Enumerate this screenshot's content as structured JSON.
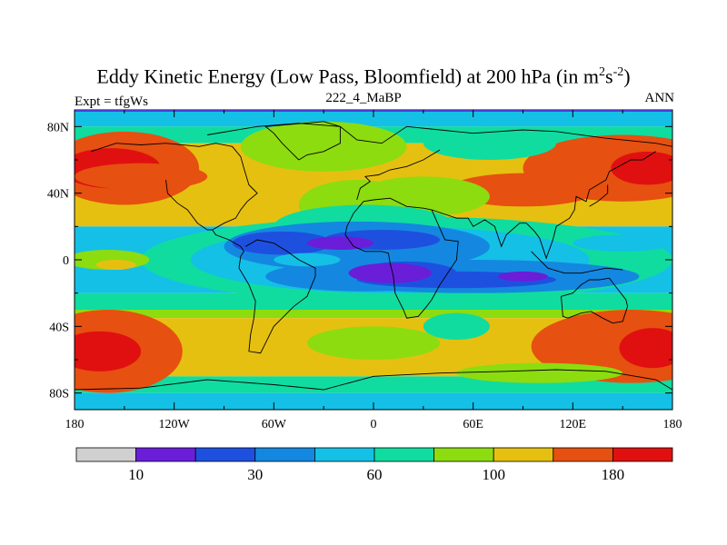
{
  "chart_data": {
    "type": "heatmap",
    "title": "Eddy Kinetic Energy (Low Pass, Bloomfield) at 200 hPa (in m",
    "title_sup1": "2",
    "title_mid": "s",
    "title_sup2": "-2",
    "title_end": ")",
    "subtitle": "222_4_MaBP",
    "left_label": "Expt = tfgWs",
    "right_label": "ANN",
    "x_ticks": [
      {
        "value": -180,
        "label": "180"
      },
      {
        "value": -120,
        "label": "120W"
      },
      {
        "value": -60,
        "label": "60W"
      },
      {
        "value": 0,
        "label": "0"
      },
      {
        "value": 60,
        "label": "60E"
      },
      {
        "value": 120,
        "label": "120E"
      },
      {
        "value": 180,
        "label": "180"
      }
    ],
    "y_ticks": [
      {
        "value": 80,
        "label": "80N"
      },
      {
        "value": 40,
        "label": "40N"
      },
      {
        "value": 0,
        "label": "0"
      },
      {
        "value": -40,
        "label": "40S"
      },
      {
        "value": -80,
        "label": "80S"
      }
    ],
    "xlim": [
      -180,
      180
    ],
    "ylim": [
      -90,
      90
    ],
    "colorbar": {
      "levels": [
        0,
        10,
        20,
        30,
        45,
        60,
        80,
        100,
        130,
        180,
        220
      ],
      "colors": [
        "#d0d0d0",
        "#6a1ed8",
        "#1e50e0",
        "#1488e0",
        "#14c0e6",
        "#10dca0",
        "#8cdc10",
        "#e6c010",
        "#e65010",
        "#e01010"
      ],
      "labels": [
        {
          "index": 1,
          "text": "10"
        },
        {
          "index": 3,
          "text": "30"
        },
        {
          "index": 5,
          "text": "60"
        },
        {
          "index": 7,
          "text": "100"
        },
        {
          "index": 9,
          "text": "180"
        }
      ]
    },
    "bands": [
      {
        "lat_top": 90,
        "lat_bot": 80,
        "color_index": 4
      },
      {
        "lat_top": 80,
        "lat_bot": 70,
        "color_index": 5
      },
      {
        "lat_top": 70,
        "lat_bot": 20,
        "color_index": 7
      },
      {
        "lat_top": 20,
        "lat_bot": -20,
        "color_index": 4
      },
      {
        "lat_top": -20,
        "lat_bot": -30,
        "color_index": 5
      },
      {
        "lat_top": -30,
        "lat_bot": -35,
        "color_index": 6
      },
      {
        "lat_top": -35,
        "lat_bot": -70,
        "color_index": 7
      },
      {
        "lat_top": -70,
        "lat_bot": -80,
        "color_index": 5
      },
      {
        "lat_top": -80,
        "lat_bot": -90,
        "color_index": 4
      }
    ],
    "features": [
      {
        "type": "ellipse",
        "lon": -150,
        "lat": 55,
        "rlon": 45,
        "rlat": 22,
        "color_index": 8
      },
      {
        "type": "ellipse",
        "lon": -158,
        "lat": 55,
        "rlon": 30,
        "rlat": 12,
        "color_index": 9
      },
      {
        "type": "ellipse",
        "lon": 150,
        "lat": 55,
        "rlon": 60,
        "rlat": 20,
        "color_index": 8
      },
      {
        "type": "ellipse",
        "lon": 165,
        "lat": 55,
        "rlon": 22,
        "rlat": 10,
        "color_index": 9
      },
      {
        "type": "ellipse",
        "lon": 90,
        "lat": 42,
        "rlon": 45,
        "rlat": 10,
        "color_index": 8
      },
      {
        "type": "ellipse",
        "lon": -160,
        "lat": -55,
        "rlon": 45,
        "rlat": 25,
        "color_index": 8
      },
      {
        "type": "ellipse",
        "lon": -165,
        "lat": -55,
        "rlon": 25,
        "rlat": 12,
        "color_index": 9
      },
      {
        "type": "ellipse",
        "lon": 155,
        "lat": -52,
        "rlon": 60,
        "rlat": 22,
        "color_index": 8
      },
      {
        "type": "ellipse",
        "lon": 168,
        "lat": -53,
        "rlon": 20,
        "rlat": 12,
        "color_index": 9
      },
      {
        "type": "ellipse",
        "lon": -140,
        "lat": 50,
        "rlon": 40,
        "rlat": 8,
        "color_index": 8
      },
      {
        "type": "ellipse",
        "lon": -30,
        "lat": 68,
        "rlon": 50,
        "rlat": 15,
        "color_index": 6
      },
      {
        "type": "ellipse",
        "lon": 70,
        "lat": 70,
        "rlon": 40,
        "rlat": 10,
        "color_index": 5
      },
      {
        "type": "ellipse",
        "lon": -10,
        "lat": 33,
        "rlon": 35,
        "rlat": 15,
        "color_index": 6
      },
      {
        "type": "ellipse",
        "lon": 30,
        "lat": 38,
        "rlon": 40,
        "rlat": 12,
        "color_index": 6
      },
      {
        "type": "ellipse",
        "lon": -5,
        "lat": 20,
        "rlon": 55,
        "rlat": 13,
        "color_index": 5
      },
      {
        "type": "ellipse",
        "lon": 20,
        "lat": 0,
        "rlon": 160,
        "rlat": 26,
        "color_index": 5
      },
      {
        "type": "ellipse",
        "lon": 10,
        "lat": 0,
        "rlon": 120,
        "rlat": 20,
        "color_index": 4
      },
      {
        "type": "ellipse",
        "lon": -10,
        "lat": 8,
        "rlon": 80,
        "rlat": 15,
        "color_index": 3
      },
      {
        "type": "ellipse",
        "lon": 60,
        "lat": -10,
        "rlon": 100,
        "rlat": 10,
        "color_index": 3
      },
      {
        "type": "ellipse",
        "lon": -5,
        "lat": -10,
        "rlon": 60,
        "rlat": 9,
        "color_index": 3
      },
      {
        "type": "ellipse",
        "lon": -55,
        "lat": 10,
        "rlon": 30,
        "rlat": 7,
        "color_index": 2
      },
      {
        "type": "ellipse",
        "lon": 5,
        "lat": 12,
        "rlon": 35,
        "rlat": 6,
        "color_index": 2
      },
      {
        "type": "ellipse",
        "lon": 50,
        "lat": -12,
        "rlon": 60,
        "rlat": 5,
        "color_index": 2
      },
      {
        "type": "ellipse",
        "lon": 20,
        "lat": -8,
        "rlon": 30,
        "rlat": 7,
        "color_index": 2
      },
      {
        "type": "ellipse",
        "lon": -20,
        "lat": 10,
        "rlon": 20,
        "rlat": 4,
        "color_index": 1
      },
      {
        "type": "ellipse",
        "lon": 10,
        "lat": -8,
        "rlon": 25,
        "rlat": 6,
        "color_index": 1
      },
      {
        "type": "ellipse",
        "lon": 90,
        "lat": -10,
        "rlon": 15,
        "rlat": 3,
        "color_index": 1
      },
      {
        "type": "ellipse",
        "lon": -40,
        "lat": 0,
        "rlon": 20,
        "rlat": 4,
        "color_index": 4
      },
      {
        "type": "ellipse",
        "lon": -160,
        "lat": 0,
        "rlon": 25,
        "rlat": 6,
        "color_index": 6
      },
      {
        "type": "ellipse",
        "lon": -155,
        "lat": -3,
        "rlon": 12,
        "rlat": 3,
        "color_index": 7
      },
      {
        "type": "ellipse",
        "lon": 150,
        "lat": 10,
        "rlon": 30,
        "rlat": 5,
        "color_index": 4
      },
      {
        "type": "ellipse",
        "lon": 50,
        "lat": -40,
        "rlon": 20,
        "rlat": 8,
        "color_index": 5
      },
      {
        "type": "ellipse",
        "lon": 5,
        "lat": -47,
        "rlon": 12,
        "rlat": 5,
        "color_index": 4
      },
      {
        "type": "ellipse",
        "lon": 0,
        "lat": -50,
        "rlon": 40,
        "rlat": 10,
        "color_index": 6
      },
      {
        "type": "ellipse",
        "lon": 100,
        "lat": -68,
        "rlon": 50,
        "rlat": 6,
        "color_index": 6
      }
    ],
    "coastline": [
      [
        -100,
        75
      ],
      [
        -70,
        80
      ],
      [
        -45,
        82
      ],
      [
        -20,
        80
      ],
      [
        -10,
        72
      ],
      [
        5,
        70
      ],
      [
        20,
        80
      ],
      [
        40,
        78
      ],
      [
        60,
        76
      ],
      [
        90,
        78
      ],
      [
        110,
        77
      ],
      [
        140,
        73
      ],
      [
        170,
        70
      ],
      [
        180,
        68
      ],
      [
        null,
        null
      ],
      [
        -170,
        65
      ],
      [
        -155,
        70
      ],
      [
        -140,
        69
      ],
      [
        -125,
        70
      ],
      [
        -105,
        68
      ],
      [
        -95,
        70
      ],
      [
        -85,
        68
      ],
      [
        -80,
        62
      ],
      [
        -78,
        55
      ],
      [
        -75,
        45
      ],
      [
        -72,
        42
      ],
      [
        -70,
        40
      ],
      [
        -76,
        35
      ],
      [
        -80,
        30
      ],
      [
        -83,
        25
      ],
      [
        -90,
        22
      ],
      [
        -97,
        18
      ],
      [
        -95,
        15
      ],
      [
        -87,
        12
      ],
      [
        -80,
        8
      ],
      [
        -78,
        5
      ],
      [
        -80,
        2
      ],
      [
        -81,
        -5
      ],
      [
        -75,
        -15
      ],
      [
        -71,
        -25
      ],
      [
        -72,
        -35
      ],
      [
        -74,
        -45
      ],
      [
        -75,
        -55
      ],
      [
        -68,
        -56
      ],
      [
        -65,
        -50
      ],
      [
        -60,
        -40
      ],
      [
        -55,
        -35
      ],
      [
        -48,
        -28
      ],
      [
        -40,
        -22
      ],
      [
        -35,
        -10
      ],
      [
        -35,
        -5
      ],
      [
        -45,
        0
      ],
      [
        -52,
        5
      ],
      [
        -60,
        10
      ],
      [
        -70,
        12
      ],
      [
        -77,
        8
      ],
      [
        null,
        null
      ],
      [
        -125,
        48
      ],
      [
        -124,
        40
      ],
      [
        -118,
        34
      ],
      [
        -112,
        30
      ],
      [
        -106,
        22
      ],
      [
        -100,
        18
      ],
      [
        -97,
        18
      ],
      [
        null,
        null
      ],
      [
        -10,
        36
      ],
      [
        -8,
        43
      ],
      [
        -2,
        47
      ],
      [
        -5,
        50
      ],
      [
        3,
        51
      ],
      [
        10,
        54
      ],
      [
        20,
        56
      ],
      [
        30,
        60
      ],
      [
        40,
        66
      ],
      [
        null,
        null
      ],
      [
        -17,
        15
      ],
      [
        -16,
        20
      ],
      [
        -12,
        28
      ],
      [
        -6,
        35
      ],
      [
        0,
        36
      ],
      [
        10,
        37
      ],
      [
        20,
        32
      ],
      [
        30,
        31
      ],
      [
        35,
        30
      ],
      [
        43,
        12
      ],
      [
        51,
        11
      ],
      [
        50,
        0
      ],
      [
        40,
        -15
      ],
      [
        35,
        -24
      ],
      [
        32,
        -28
      ],
      [
        27,
        -34
      ],
      [
        20,
        -35
      ],
      [
        18,
        -30
      ],
      [
        13,
        -20
      ],
      [
        12,
        -10
      ],
      [
        10,
        -2
      ],
      [
        9,
        4
      ],
      [
        5,
        5
      ],
      [
        -5,
        5
      ],
      [
        -12,
        8
      ],
      [
        -17,
        15
      ],
      [
        null,
        null
      ],
      [
        35,
        30
      ],
      [
        50,
        25
      ],
      [
        57,
        25
      ],
      [
        60,
        20
      ],
      [
        67,
        24
      ],
      [
        73,
        20
      ],
      [
        77,
        8
      ],
      [
        80,
        15
      ],
      [
        88,
        22
      ],
      [
        92,
        22
      ],
      [
        97,
        17
      ],
      [
        100,
        13
      ],
      [
        104,
        1
      ],
      [
        108,
        12
      ],
      [
        110,
        20
      ],
      [
        118,
        25
      ],
      [
        121,
        30
      ],
      [
        122,
        38
      ],
      [
        128,
        35
      ],
      [
        130,
        42
      ],
      [
        140,
        48
      ],
      [
        142,
        53
      ],
      [
        155,
        60
      ],
      [
        162,
        60
      ],
      [
        170,
        65
      ],
      [
        null,
        null
      ],
      [
        113,
        -22
      ],
      [
        114,
        -34
      ],
      [
        117,
        -35
      ],
      [
        125,
        -32
      ],
      [
        131,
        -31
      ],
      [
        138,
        -35
      ],
      [
        144,
        -38
      ],
      [
        150,
        -37
      ],
      [
        153,
        -28
      ],
      [
        152,
        -24
      ],
      [
        145,
        -15
      ],
      [
        142,
        -11
      ],
      [
        136,
        -12
      ],
      [
        130,
        -12
      ],
      [
        125,
        -15
      ],
      [
        120,
        -20
      ],
      [
        113,
        -22
      ],
      [
        null,
        null
      ],
      [
        -45,
        60
      ],
      [
        -50,
        65
      ],
      [
        -55,
        70
      ],
      [
        -60,
        76
      ],
      [
        -65,
        80
      ],
      [
        -30,
        83
      ],
      [
        -20,
        80
      ],
      [
        -20,
        70
      ],
      [
        -30,
        65
      ],
      [
        -40,
        63
      ],
      [
        -45,
        60
      ],
      [
        null,
        null
      ],
      [
        -180,
        -78
      ],
      [
        -140,
        -77
      ],
      [
        -100,
        -72
      ],
      [
        -60,
        -75
      ],
      [
        -30,
        -78
      ],
      [
        0,
        -70
      ],
      [
        40,
        -68
      ],
      [
        80,
        -67
      ],
      [
        110,
        -66
      ],
      [
        140,
        -67
      ],
      [
        170,
        -72
      ],
      [
        180,
        -78
      ],
      [
        null,
        null
      ],
      [
        95,
        5
      ],
      [
        105,
        -5
      ],
      [
        115,
        -8
      ],
      [
        125,
        -8
      ],
      [
        140,
        -5
      ],
      [
        150,
        -6
      ],
      [
        null,
        null
      ],
      [
        130,
        32
      ],
      [
        135,
        35
      ],
      [
        141,
        40
      ],
      [
        141,
        45
      ]
    ]
  }
}
